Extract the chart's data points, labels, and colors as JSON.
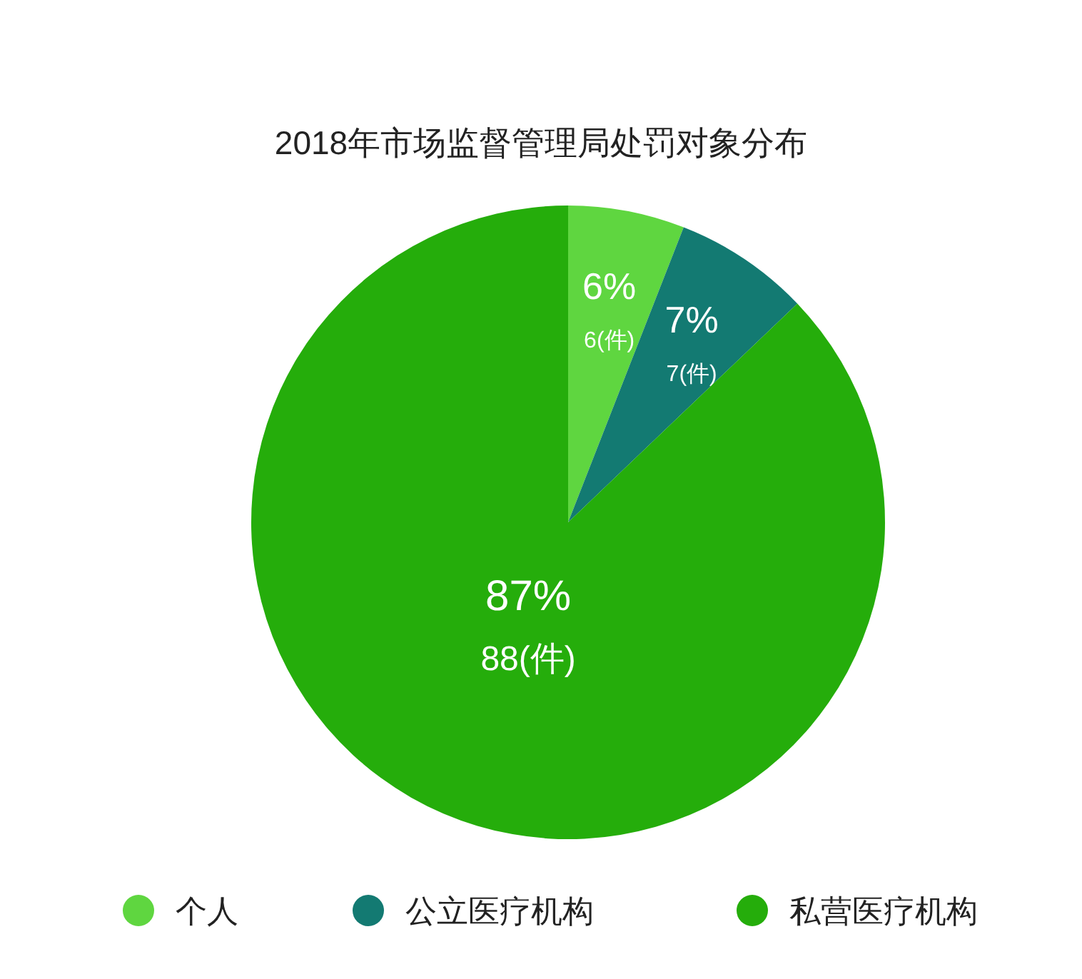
{
  "chart_data": {
    "type": "pie",
    "title": "2018年市场监督管理局处罚对象分布",
    "categories": [
      "个人",
      "公立医疗机构",
      "私营医疗机构"
    ],
    "values": [
      6,
      7,
      88
    ],
    "colors": [
      "#5fd640",
      "#137a72",
      "#25ad0b"
    ],
    "value_labels": [
      "6%\n6(件)",
      "7%\n7(件)",
      "87%\n88(件)"
    ],
    "legend": "bottom"
  }
}
